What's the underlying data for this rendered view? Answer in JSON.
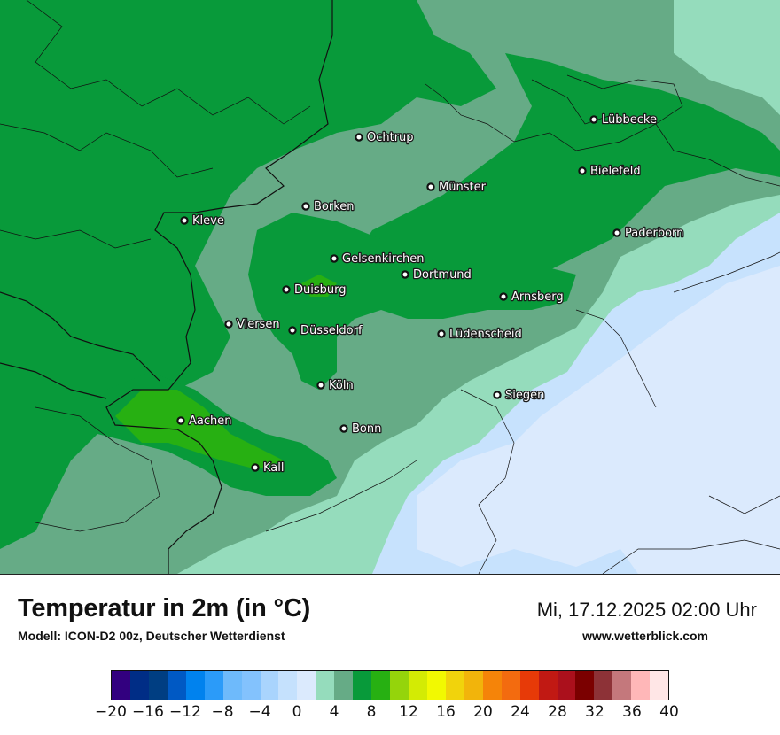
{
  "map": {
    "cities": [
      {
        "name": "Lübbecke"
      },
      {
        "name": "Ochtrup"
      },
      {
        "name": "Bielefeld"
      },
      {
        "name": "Münster"
      },
      {
        "name": "Borken"
      },
      {
        "name": "Kleve"
      },
      {
        "name": "Paderborn"
      },
      {
        "name": "Gelsenkirchen"
      },
      {
        "name": "Dortmund"
      },
      {
        "name": "Duisburg"
      },
      {
        "name": "Arnsberg"
      },
      {
        "name": "Viersen"
      },
      {
        "name": "Düsseldorf"
      },
      {
        "name": "Lüdenscheid"
      },
      {
        "name": "Köln"
      },
      {
        "name": "Siegen"
      },
      {
        "name": "Aachen"
      },
      {
        "name": "Bonn"
      },
      {
        "name": "Kall"
      }
    ],
    "fill_colors": {
      "band_4_6": "#66ab86",
      "band_6_8": "#089a3a",
      "band_8_10": "#27b012",
      "band_2_4": "#95dcbc",
      "band_0_2": "#c7e2fd",
      "band_minus2_0": "#dbeafd"
    }
  },
  "footer": {
    "title": "Temperatur in 2m (in °C)",
    "model": "Modell: ICON-D2 00z, Deutscher Wetterdienst",
    "datetime": "Mi, 17.12.2025 02:00 Uhr",
    "website": "www.wetterblick.com"
  },
  "legend": {
    "colors": [
      "#32007f",
      "#002d86",
      "#003e82",
      "#0059c4",
      "#0082ee",
      "#2b9bf9",
      "#6ebafb",
      "#83c2fd",
      "#a9d4fd",
      "#c5e1fd",
      "#dbeafd",
      "#95dcbc",
      "#66ab86",
      "#089a3a",
      "#27b012",
      "#95d40b",
      "#d3eb04",
      "#f2f901",
      "#f1d30c",
      "#f2b40b",
      "#f58409",
      "#f36b0f",
      "#e73a08",
      "#c11913",
      "#ab101c",
      "#7b0000",
      "#8d3237",
      "#c4787c",
      "#ffb7b8",
      "#ffe6e6"
    ],
    "ticks": [
      "−20",
      "−16",
      "−12",
      "−8",
      "−4",
      "0",
      "4",
      "8",
      "12",
      "16",
      "20",
      "24",
      "28",
      "32",
      "36",
      "40"
    ],
    "min": -20,
    "max": 40
  }
}
